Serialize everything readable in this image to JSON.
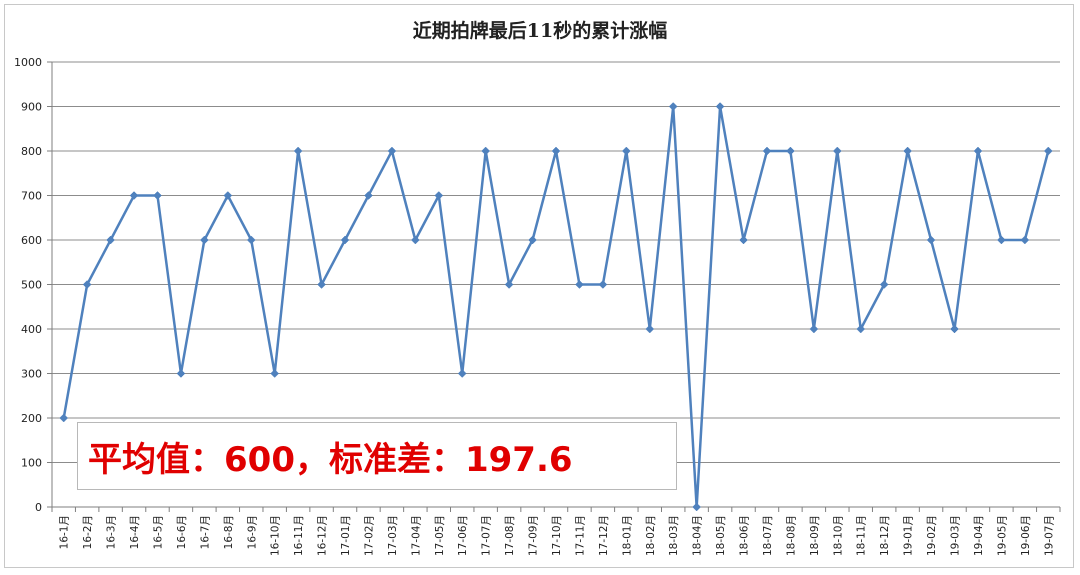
{
  "chart_data": {
    "type": "line",
    "title": "近期拍牌最后11秒的累计涨幅",
    "xlabel": "",
    "ylabel": "",
    "ylim": [
      0,
      1000
    ],
    "yticks": [
      0,
      100,
      200,
      300,
      400,
      500,
      600,
      700,
      800,
      900,
      1000
    ],
    "grid": true,
    "legend": "none",
    "line_color": "#4f81bd",
    "categories": [
      "16-1月",
      "16-2月",
      "16-3月",
      "16-4月",
      "16-5月",
      "16-6月",
      "16-7月",
      "16-8月",
      "16-9月",
      "16-10月",
      "16-11月",
      "16-12月",
      "17-01月",
      "17-02月",
      "17-03月",
      "17-04月",
      "17-05月",
      "17-06月",
      "17-07月",
      "17-08月",
      "17-09月",
      "17-10月",
      "17-11月",
      "17-12月",
      "18-01月",
      "18-02月",
      "18-03月",
      "18-04月",
      "18-05月",
      "18-06月",
      "18-07月",
      "18-08月",
      "18-09月",
      "18-10月",
      "18-11月",
      "18-12月",
      "19-01月",
      "19-02月",
      "19-03月",
      "19-04月",
      "19-05月",
      "19-06月",
      "19-07月"
    ],
    "values": [
      200,
      500,
      600,
      700,
      700,
      300,
      600,
      700,
      600,
      300,
      800,
      500,
      600,
      700,
      800,
      600,
      700,
      300,
      800,
      500,
      600,
      800,
      500,
      500,
      800,
      400,
      900,
      0,
      900,
      600,
      800,
      800,
      400,
      800,
      400,
      500,
      800,
      600,
      400,
      800,
      600,
      600,
      800
    ],
    "annotation": "平均值：600，标准差：197.6",
    "annotation_color": "#e00000"
  }
}
